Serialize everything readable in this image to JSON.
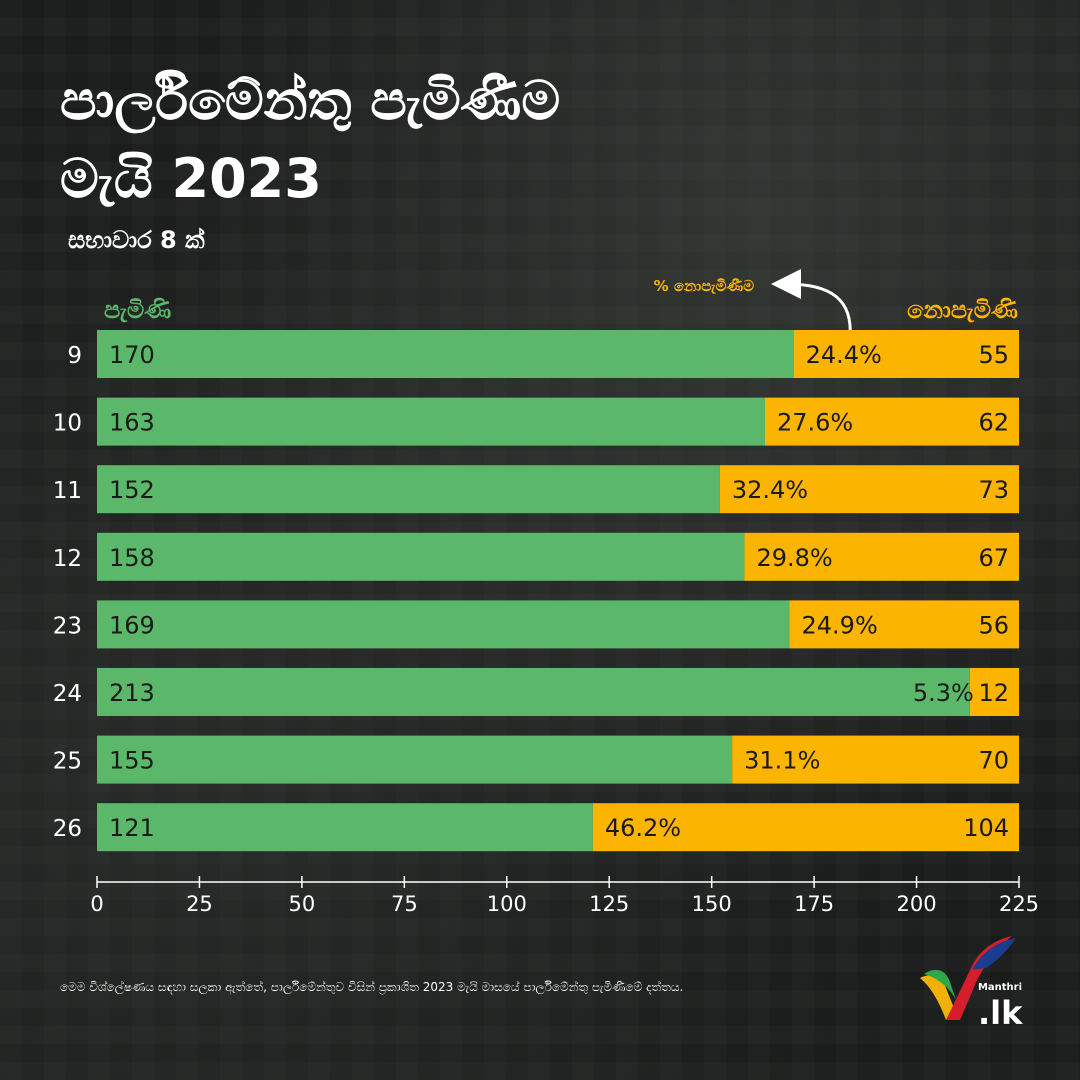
{
  "header": {
    "title_line1": "පාර්ලිමේන්තු පැමිණීම",
    "title_line2": "මැයි 2023",
    "subtitle": "සභාවාර 8 ක්"
  },
  "legend": {
    "present_label": "පැමිණි",
    "absent_label": "නොපැමිණි",
    "pct_note": "% නොපැමිණීම"
  },
  "colors": {
    "present": "#5bb86a",
    "absent": "#fbb400",
    "present_label": "#5bb86a",
    "absent_label": "#fbb400"
  },
  "chart_data": {
    "type": "bar",
    "orientation": "horizontal",
    "stacked": true,
    "categories": [
      "9",
      "10",
      "11",
      "12",
      "23",
      "24",
      "25",
      "26"
    ],
    "series": [
      {
        "name": "පැමිණි",
        "values": [
          170,
          163,
          152,
          158,
          169,
          213,
          155,
          121
        ]
      },
      {
        "name": "නොපැමිණි",
        "values": [
          55,
          62,
          73,
          67,
          56,
          12,
          70,
          104
        ]
      }
    ],
    "absent_pct_labels": [
      "24.4%",
      "27.6%",
      "32.4%",
      "29.8%",
      "24.9%",
      "5.3%",
      "31.1%",
      "46.2%"
    ],
    "xlim": [
      0,
      225
    ],
    "xticks": [
      0,
      25,
      50,
      75,
      100,
      125,
      150,
      175,
      200,
      225
    ],
    "grid": false
  },
  "footnote": "මෙම විශ්ලේෂණය සඳහා සලකා ඇත්තේ, පාර්ලිමේන්තුව විසින් ප්‍රකාශිත 2023 මැයි මාසයේ පාර්ලිමේන්තු පැමිණීමේ දත්තය.",
  "logo": {
    "small_text": "Manthri",
    "main_text": ".lk"
  }
}
